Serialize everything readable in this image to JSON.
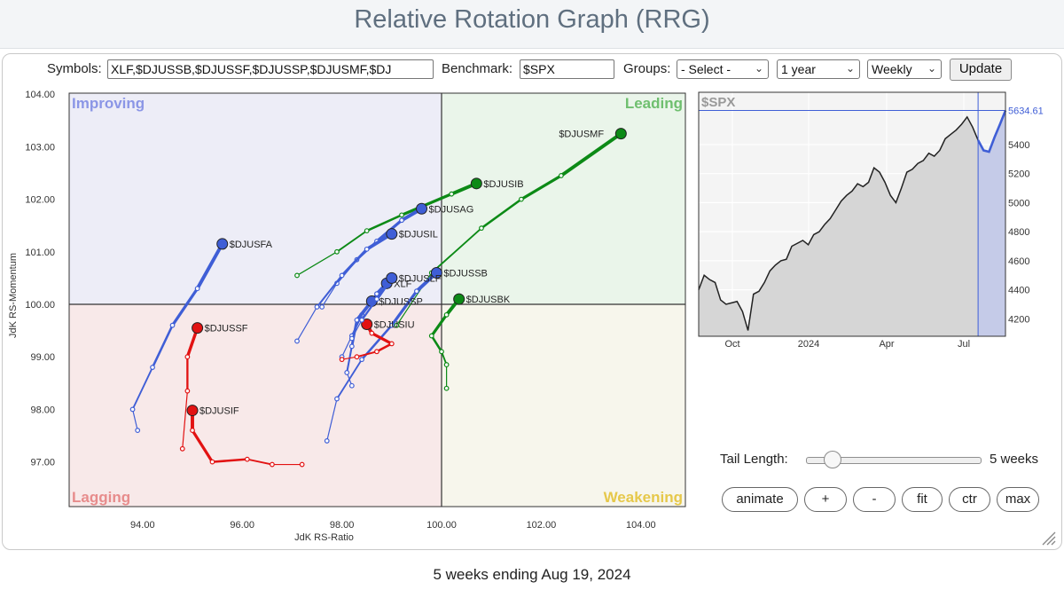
{
  "header": {
    "title": "Relative Rotation Graph (RRG)"
  },
  "controls": {
    "symbols_label": "Symbols:",
    "symbols_value": "XLF,$DJUSSB,$DJUSSF,$DJUSSP,$DJUSMF,$DJ",
    "benchmark_label": "Benchmark:",
    "benchmark_value": "$SPX",
    "groups_label": "Groups:",
    "groups_value": "- Select -",
    "period_value": "1 year",
    "frequency_value": "Weekly",
    "update_label": "Update"
  },
  "tail": {
    "label": "Tail Length:",
    "value_text": "5 weeks",
    "weeks": 5
  },
  "buttons": {
    "animate": "animate",
    "zoom_in": "+",
    "zoom_out": "-",
    "fit": "fit",
    "ctr": "ctr",
    "max": "max"
  },
  "footer": {
    "text": "5 weeks ending Aug 19, 2024"
  },
  "colors": {
    "improving_bg": "#ededf7",
    "leading_bg": "#eaf5ea",
    "lagging_bg": "#f8e9e9",
    "weakening_bg": "#f7f6ec",
    "improving_label": "#8b96e6",
    "leading_label": "#6fbf6f",
    "lagging_label": "#e78c8c",
    "weakening_label": "#e6c84a",
    "blue": "#3f5ed6",
    "green": "#0c8a16",
    "red": "#e21212",
    "spx_line": "#222222",
    "spx_highlight": "#3f5ed6"
  },
  "chart_data": [
    {
      "type": "scatter",
      "subtype": "relative-rotation-graph",
      "xlabel": "JdK RS-Ratio",
      "ylabel": "JdK RS-Momentum",
      "xlim": [
        92.7,
        105.0
      ],
      "ylim": [
        96.3,
        104.2
      ],
      "x_ticks": [
        "94.00",
        "96.00",
        "98.00",
        "100.00",
        "102.00",
        "104.00"
      ],
      "y_ticks": [
        "104.00",
        "103.00",
        "102.00",
        "101.00",
        "100.00",
        "99.00",
        "98.00",
        "97.00"
      ],
      "quadrants": {
        "top_left": "Improving",
        "top_right": "Leading",
        "bottom_left": "Lagging",
        "bottom_right": "Weakening"
      },
      "grid": false,
      "series": [
        {
          "name": "$DJUSMF",
          "color": "green",
          "points": [
            [
              99.1,
              99.6
            ],
            [
              99.8,
              100.6
            ],
            [
              100.8,
              101.45
            ],
            [
              101.6,
              102.0
            ],
            [
              102.4,
              102.45
            ],
            [
              103.6,
              103.25
            ]
          ]
        },
        {
          "name": "$DJUSIB",
          "color": "green",
          "points": [
            [
              97.1,
              100.55
            ],
            [
              97.9,
              101.0
            ],
            [
              98.5,
              101.4
            ],
            [
              99.2,
              101.7
            ],
            [
              100.2,
              102.1
            ],
            [
              100.7,
              102.3
            ]
          ]
        },
        {
          "name": "$DJUSAG",
          "color": "blue",
          "points": [
            [
              97.6,
              99.95
            ],
            [
              97.9,
              100.4
            ],
            [
              98.3,
              100.85
            ],
            [
              98.7,
              101.2
            ],
            [
              99.2,
              101.6
            ],
            [
              99.6,
              101.82
            ]
          ]
        },
        {
          "name": "$DJUSIL",
          "color": "blue",
          "points": [
            [
              97.1,
              99.3
            ],
            [
              97.5,
              99.95
            ],
            [
              98.0,
              100.55
            ],
            [
              98.5,
              101.05
            ],
            [
              99.0,
              101.34
            ]
          ]
        },
        {
          "name": "$DJUSSB",
          "color": "blue",
          "points": [
            [
              97.7,
              97.4
            ],
            [
              97.9,
              98.2
            ],
            [
              98.4,
              98.95
            ],
            [
              99.0,
              99.6
            ],
            [
              99.5,
              100.25
            ],
            [
              99.9,
              100.6
            ]
          ]
        },
        {
          "name": "$DJUSSF",
          "color": "red",
          "points": [
            [
              94.8,
              97.25
            ],
            [
              94.9,
              98.35
            ],
            [
              94.9,
              99.0
            ],
            [
              95.1,
              99.55
            ]
          ]
        },
        {
          "name": "$DJUSIF",
          "color": "red",
          "points": [
            [
              97.2,
              96.95
            ],
            [
              96.6,
              96.95
            ],
            [
              96.1,
              97.05
            ],
            [
              95.4,
              97.0
            ],
            [
              95.0,
              97.6
            ],
            [
              95.0,
              97.98
            ]
          ]
        },
        {
          "name": "$DJUSFA",
          "color": "blue",
          "points": [
            [
              93.9,
              97.6
            ],
            [
              93.8,
              98.0
            ],
            [
              94.2,
              98.8
            ],
            [
              94.6,
              99.6
            ],
            [
              95.1,
              100.3
            ],
            [
              95.6,
              101.15
            ]
          ]
        },
        {
          "name": "XLF",
          "color": "blue",
          "points": [
            [
              98.0,
              99.0
            ],
            [
              98.2,
              99.4
            ],
            [
              98.4,
              99.8
            ],
            [
              98.7,
              100.2
            ],
            [
              98.9,
              100.4
            ]
          ]
        },
        {
          "name": "$DJUSSP",
          "color": "blue",
          "points": [
            [
              98.2,
              98.45
            ],
            [
              98.1,
              98.7
            ],
            [
              98.2,
              99.2
            ],
            [
              98.3,
              99.7
            ],
            [
              98.6,
              100.06
            ]
          ]
        },
        {
          "name": "$DJUSIU",
          "color": "red",
          "points": [
            [
              98.0,
              98.95
            ],
            [
              98.3,
              99.0
            ],
            [
              98.7,
              99.1
            ],
            [
              99.0,
              99.25
            ],
            [
              98.6,
              99.45
            ],
            [
              98.5,
              99.62
            ]
          ]
        },
        {
          "name": "$DJUSBK",
          "color": "green",
          "points": [
            [
              100.1,
              98.4
            ],
            [
              100.1,
              98.85
            ],
            [
              100.0,
              99.1
            ],
            [
              99.8,
              99.4
            ],
            [
              100.1,
              99.8
            ],
            [
              100.35,
              100.1
            ]
          ]
        },
        {
          "name": "$DJUSLF",
          "color": "blue",
          "points": [
            [
              98.2,
              99.35
            ],
            [
              98.4,
              99.7
            ],
            [
              98.7,
              100.1
            ],
            [
              99.0,
              100.5
            ]
          ]
        }
      ]
    },
    {
      "type": "area",
      "title": "$SPX",
      "x_ticks": [
        "Oct",
        "2024",
        "Apr",
        "Jul"
      ],
      "y_ticks": [
        "5400",
        "5200",
        "5000",
        "4800",
        "4600",
        "4400",
        "4200"
      ],
      "ylim": [
        4080,
        5760
      ],
      "last_value": "5634.61",
      "grid": true,
      "values": [
        4400,
        4500,
        4470,
        4450,
        4330,
        4300,
        4310,
        4320,
        4250,
        4120,
        4370,
        4390,
        4450,
        4530,
        4570,
        4600,
        4610,
        4700,
        4720,
        4740,
        4710,
        4780,
        4800,
        4850,
        4890,
        4950,
        5010,
        5050,
        5080,
        5130,
        5110,
        5140,
        5240,
        5210,
        5140,
        5050,
        5000,
        5100,
        5210,
        5230,
        5270,
        5290,
        5340,
        5320,
        5360,
        5440,
        5470,
        5500,
        5540,
        5590,
        5520,
        5430,
        5360,
        5350,
        5450,
        5540,
        5634.61
      ]
    }
  ]
}
